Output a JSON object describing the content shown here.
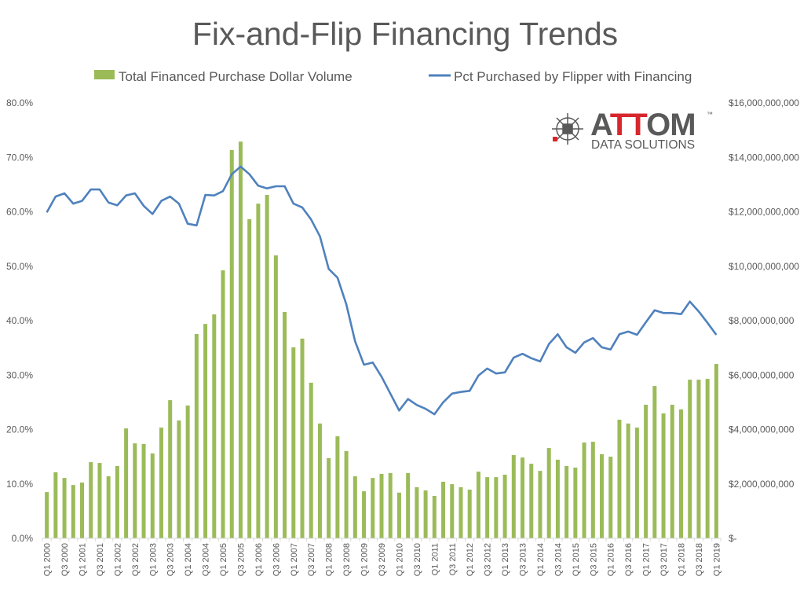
{
  "chart_data": {
    "type": "bar+line",
    "title": "Fix-and-Flip Financing Trends",
    "xlabel": "",
    "ylabel_left": "",
    "ylabel_right": "",
    "grid": false,
    "legend_position": "top",
    "categories": [
      "Q1 2000",
      "Q2 2000",
      "Q3 2000",
      "Q4 2000",
      "Q1 2001",
      "Q2 2001",
      "Q3 2001",
      "Q4 2001",
      "Q1 2002",
      "Q2 2002",
      "Q3 2002",
      "Q4 2002",
      "Q1 2003",
      "Q2 2003",
      "Q3 2003",
      "Q4 2003",
      "Q1 2004",
      "Q2 2004",
      "Q3 2004",
      "Q4 2004",
      "Q1 2005",
      "Q2 2005",
      "Q3 2005",
      "Q4 2005",
      "Q1 2006",
      "Q2 2006",
      "Q3 2006",
      "Q4 2006",
      "Q1 2007",
      "Q2 2007",
      "Q3 2007",
      "Q4 2007",
      "Q1 2008",
      "Q2 2008",
      "Q3 2008",
      "Q4 2008",
      "Q1 2009",
      "Q2 2009",
      "Q3 2009",
      "Q4 2009",
      "Q1 2010",
      "Q2 2010",
      "Q3 2010",
      "Q4 2010",
      "Q1 2011",
      "Q2 2011",
      "Q3 2011",
      "Q4 2011",
      "Q1 2012",
      "Q2 2012",
      "Q3 2012",
      "Q4 2012",
      "Q1 2013",
      "Q2 2013",
      "Q3 2013",
      "Q4 2013",
      "Q1 2014",
      "Q2 2014",
      "Q3 2014",
      "Q4 2014",
      "Q1 2015",
      "Q2 2015",
      "Q3 2015",
      "Q4 2015",
      "Q1 2016",
      "Q2 2016",
      "Q3 2016",
      "Q4 2016",
      "Q1 2017",
      "Q2 2017",
      "Q3 2017",
      "Q4 2017",
      "Q1 2018",
      "Q2 2018",
      "Q3 2018",
      "Q4 2018",
      "Q1 2019"
    ],
    "series": [
      {
        "name": "Total Financed Purchase Dollar Volume",
        "type": "bar",
        "axis": "right",
        "color": "#9bbb59",
        "unit": "billions USD",
        "values": [
          1.7,
          2.43,
          2.22,
          1.96,
          2.05,
          2.8,
          2.77,
          2.28,
          2.66,
          4.04,
          3.49,
          3.47,
          3.12,
          4.07,
          5.08,
          4.33,
          4.88,
          7.51,
          7.88,
          8.23,
          9.85,
          14.27,
          14.58,
          11.73,
          12.3,
          12.62,
          10.4,
          8.32,
          7.02,
          7.34,
          5.72,
          4.22,
          2.95,
          3.75,
          3.21,
          2.28,
          1.73,
          2.22,
          2.37,
          2.4,
          1.68,
          2.4,
          1.88,
          1.76,
          1.56,
          2.08,
          1.99,
          1.88,
          1.79,
          2.45,
          2.25,
          2.25,
          2.34,
          3.06,
          2.97,
          2.74,
          2.48,
          3.32,
          2.89,
          2.66,
          2.6,
          3.52,
          3.55,
          3.09,
          3.0,
          4.36,
          4.22,
          4.07,
          4.91,
          5.6,
          4.59,
          4.91,
          4.74,
          5.83,
          5.83,
          5.86,
          6.41
        ]
      },
      {
        "name": "Pct Purchased by Flipper with Financing",
        "type": "line",
        "axis": "left",
        "color": "#4f81bd",
        "unit": "percent",
        "values": [
          59.9,
          62.8,
          63.4,
          61.5,
          62.0,
          64.1,
          64.1,
          61.7,
          61.2,
          63.0,
          63.4,
          61.1,
          59.6,
          62.0,
          62.8,
          61.5,
          57.8,
          57.5,
          63.1,
          63.0,
          63.8,
          66.9,
          68.3,
          66.9,
          64.8,
          64.3,
          64.7,
          64.7,
          61.5,
          60.8,
          58.6,
          55.5,
          49.5,
          47.9,
          43.0,
          36.2,
          31.9,
          32.3,
          29.7,
          26.6,
          23.5,
          25.6,
          24.5,
          23.8,
          22.8,
          25.0,
          26.6,
          26.9,
          27.1,
          29.9,
          31.2,
          30.3,
          30.5,
          33.2,
          33.9,
          33.1,
          32.5,
          35.7,
          37.5,
          35.1,
          34.1,
          36.0,
          36.8,
          35.1,
          34.7,
          37.5,
          38.0,
          37.4,
          39.7,
          41.9,
          41.4,
          41.4,
          41.2,
          43.5,
          41.7,
          39.6,
          37.4
        ]
      }
    ],
    "left_axis": {
      "range": [
        0,
        80
      ],
      "ticks": [
        "0.0%",
        "10.0%",
        "20.0%",
        "30.0%",
        "40.0%",
        "50.0%",
        "60.0%",
        "70.0%",
        "80.0%"
      ]
    },
    "right_axis": {
      "range": [
        0,
        16
      ],
      "ticks": [
        "$-",
        "$2,000,000,000",
        "$4,000,000,000",
        "$6,000,000,000",
        "$8,000,000,000",
        "$10,000,000,000",
        "$12,000,000,000",
        "$14,000,000,000",
        "$16,000,000,000"
      ]
    },
    "x_tick_labels": [
      "Q1 2000",
      "Q3 2000",
      "Q1 2001",
      "Q3 2001",
      "Q1 2002",
      "Q3 2002",
      "Q1 2003",
      "Q3 2003",
      "Q1 2004",
      "Q3 2004",
      "Q1 2005",
      "Q3 2005",
      "Q1 2006",
      "Q3 2006",
      "Q1 2007",
      "Q3 2007",
      "Q1 2008",
      "Q3 2008",
      "Q1 2009",
      "Q3 2009",
      "Q1 2010",
      "Q3 2010",
      "Q1 2011",
      "Q3 2011",
      "Q1 2012",
      "Q3 2012",
      "Q1 2013",
      "Q3 2013",
      "Q1 2014",
      "Q3 2014",
      "Q1 2015",
      "Q3 2015",
      "Q1 2016",
      "Q3 2016",
      "Q1 2017",
      "Q3 2017",
      "Q1 2018",
      "Q3 2018",
      "Q1 2019"
    ]
  },
  "logo": {
    "name": "ATTOM",
    "tagline": "DATA SOLUTIONS",
    "mark": "™",
    "accent": "#d7262c",
    "gray": "#595959"
  }
}
